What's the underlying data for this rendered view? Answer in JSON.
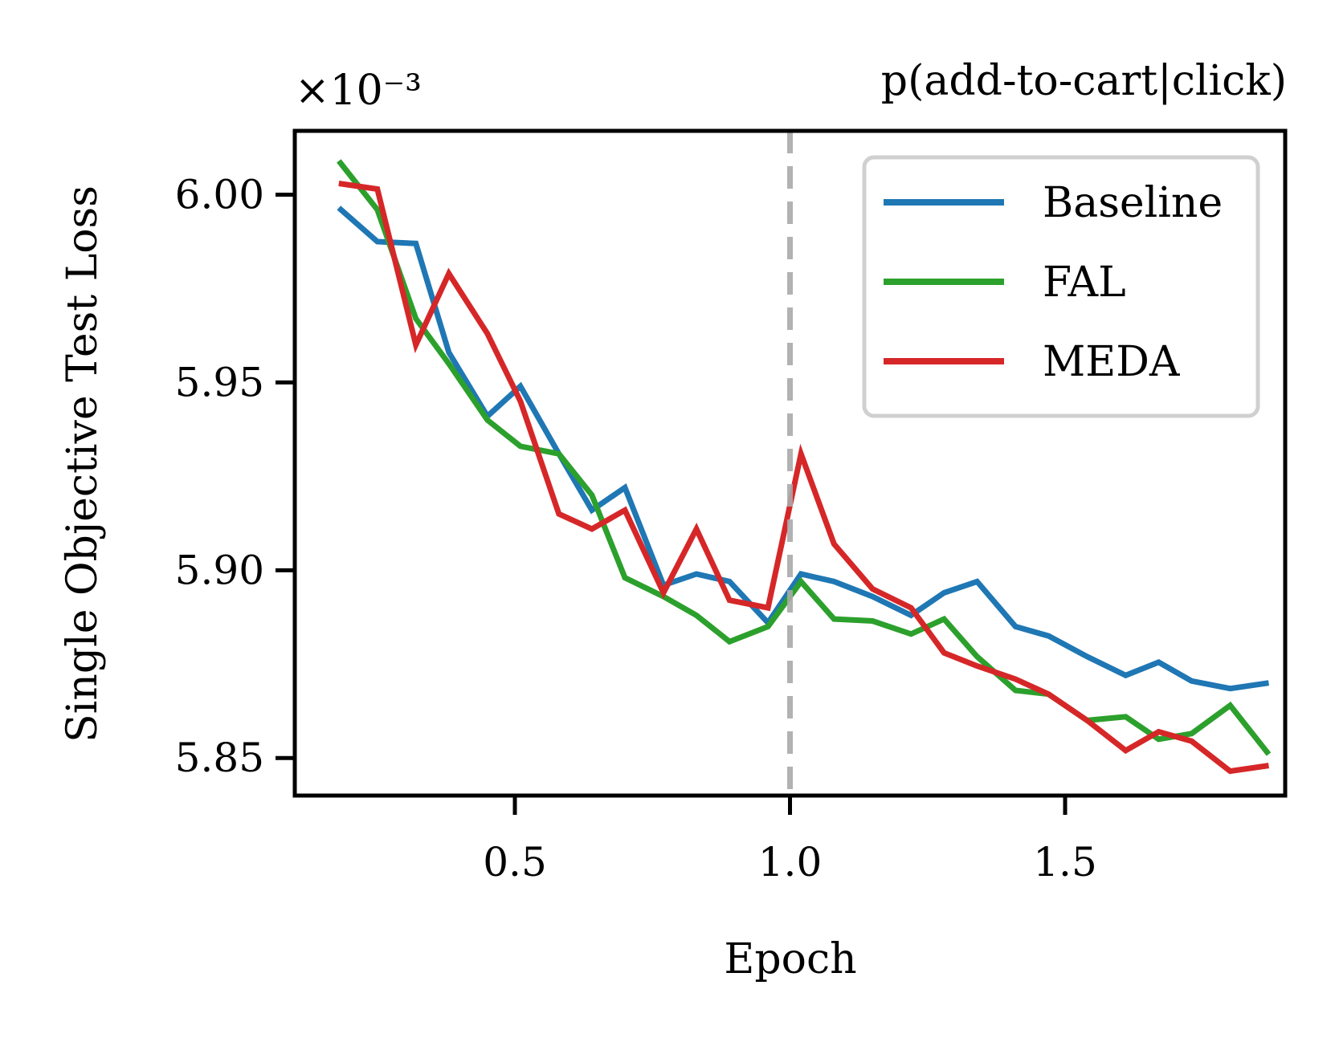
{
  "chart_data": {
    "type": "line",
    "title": "p(add-to-cart|click)",
    "xlabel": "Epoch",
    "ylabel": "Single Objective Test Loss",
    "y_scale_label": "×10⁻³",
    "xlim": [
      0.1,
      1.9
    ],
    "ylim": [
      5.84,
      6.017
    ],
    "xticks": [
      0.5,
      1.0,
      1.5
    ],
    "xtick_labels": [
      "0.5",
      "1.0",
      "1.5"
    ],
    "yticks": [
      5.85,
      5.9,
      5.95,
      6.0
    ],
    "ytick_labels": [
      "5.85",
      "5.90",
      "5.95",
      "6.00"
    ],
    "grid": false,
    "legend_position": "top-right",
    "vline": {
      "x": 1.0,
      "style": "dashed",
      "color": "#aaaaaa"
    },
    "x": [
      0.18,
      0.25,
      0.32,
      0.38,
      0.45,
      0.51,
      0.58,
      0.64,
      0.7,
      0.77,
      0.83,
      0.89,
      0.96,
      1.02,
      1.08,
      1.15,
      1.22,
      1.28,
      1.34,
      1.41,
      1.47,
      1.54,
      1.61,
      1.67,
      1.73,
      1.8,
      1.87
    ],
    "series": [
      {
        "name": "Baseline",
        "color": "#1f77b4",
        "values": [
          5.9965,
          5.9875,
          5.987,
          5.958,
          5.941,
          5.949,
          5.931,
          5.916,
          5.922,
          5.896,
          5.899,
          5.897,
          5.886,
          5.899,
          5.897,
          5.893,
          5.888,
          5.894,
          5.897,
          5.885,
          5.8825,
          5.877,
          5.872,
          5.8755,
          5.8705,
          5.8685,
          5.87
        ]
      },
      {
        "name": "FAL",
        "color": "#2ca02c",
        "values": [
          6.009,
          5.996,
          5.967,
          5.955,
          5.94,
          5.933,
          5.931,
          5.92,
          5.898,
          5.893,
          5.888,
          5.881,
          5.885,
          5.897,
          5.887,
          5.8865,
          5.883,
          5.887,
          5.877,
          5.868,
          5.867,
          5.86,
          5.861,
          5.855,
          5.8565,
          5.864,
          5.851
        ]
      },
      {
        "name": "MEDA",
        "color": "#d62728",
        "values": [
          6.003,
          6.0015,
          5.96,
          5.979,
          5.963,
          5.945,
          5.915,
          5.911,
          5.916,
          5.894,
          5.911,
          5.892,
          5.89,
          5.931,
          5.907,
          5.895,
          5.89,
          5.878,
          5.8745,
          5.871,
          5.867,
          5.86,
          5.852,
          5.857,
          5.8545,
          5.8465,
          5.848
        ]
      }
    ]
  }
}
